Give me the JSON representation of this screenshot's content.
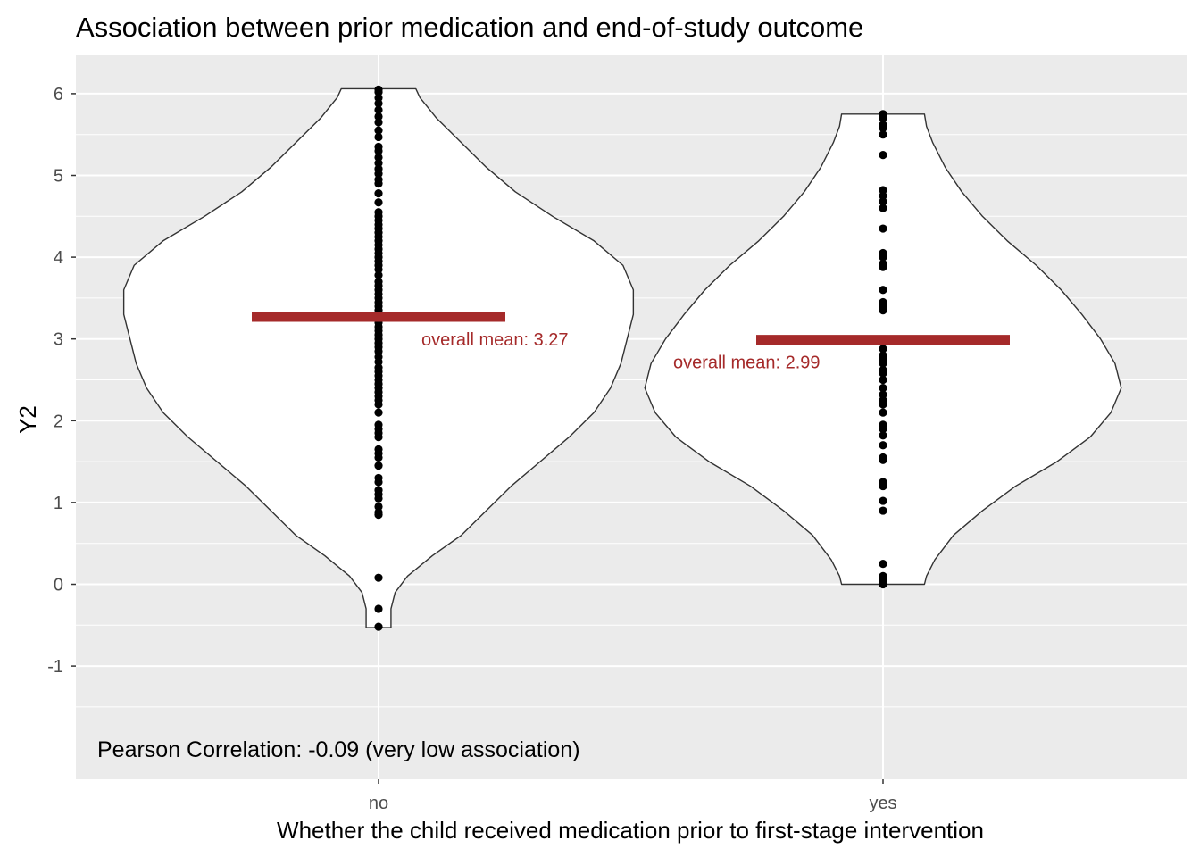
{
  "chart_data": {
    "type": "violin",
    "title": "Association between prior medication and end-of-study outcome",
    "xlabel": "Whether the child received medication prior to first-stage intervention",
    "ylabel": "Y2",
    "categories": [
      "no",
      "yes"
    ],
    "ylim": [
      -2,
      6.47
    ],
    "yticks": [
      -1,
      0,
      1,
      2,
      3,
      4,
      5,
      6
    ],
    "grid": true,
    "background": "#ebebeb",
    "mean_color": "#a52a2a",
    "groups": [
      {
        "category": "no",
        "mean": 3.27,
        "mean_label": "overall mean: 3.27",
        "points": [
          6.05,
          6.02,
          5.95,
          5.88,
          5.8,
          5.72,
          5.65,
          5.55,
          5.47,
          5.35,
          5.3,
          5.22,
          5.15,
          5.08,
          5.02,
          4.95,
          4.9,
          4.78,
          4.67,
          4.55,
          4.5,
          4.45,
          4.4,
          4.35,
          4.3,
          4.25,
          4.2,
          4.15,
          4.1,
          4.05,
          4.0,
          3.95,
          3.9,
          3.85,
          3.78,
          3.7,
          3.65,
          3.6,
          3.55,
          3.5,
          3.45,
          3.4,
          3.35,
          3.3,
          3.25,
          3.2,
          3.15,
          3.1,
          3.05,
          3.0,
          2.95,
          2.9,
          2.85,
          2.78,
          2.72,
          2.65,
          2.6,
          2.55,
          2.5,
          2.45,
          2.4,
          2.35,
          2.3,
          2.25,
          2.2,
          2.1,
          1.95,
          1.9,
          1.85,
          1.8,
          1.65,
          1.6,
          1.55,
          1.45,
          1.3,
          1.25,
          1.15,
          1.1,
          1.05,
          0.95,
          0.88,
          0.85,
          0.08,
          -0.3,
          -0.52
        ],
        "density": [
          [
            -0.53,
            0.06
          ],
          [
            -0.48,
            0.06
          ],
          [
            -0.3,
            0.06
          ],
          [
            -0.1,
            0.08
          ],
          [
            0.1,
            0.14
          ],
          [
            0.35,
            0.26
          ],
          [
            0.6,
            0.4
          ],
          [
            0.9,
            0.52
          ],
          [
            1.2,
            0.64
          ],
          [
            1.5,
            0.78
          ],
          [
            1.8,
            0.92
          ],
          [
            2.1,
            1.04
          ],
          [
            2.4,
            1.12
          ],
          [
            2.7,
            1.17
          ],
          [
            3.0,
            1.2
          ],
          [
            3.3,
            1.23
          ],
          [
            3.6,
            1.23
          ],
          [
            3.9,
            1.18
          ],
          [
            4.2,
            1.04
          ],
          [
            4.5,
            0.84
          ],
          [
            4.8,
            0.66
          ],
          [
            5.1,
            0.52
          ],
          [
            5.4,
            0.4
          ],
          [
            5.7,
            0.28
          ],
          [
            5.95,
            0.2
          ],
          [
            6.06,
            0.18
          ]
        ]
      },
      {
        "category": "yes",
        "mean": 2.99,
        "mean_label": "overall mean: 2.99",
        "points": [
          5.75,
          5.7,
          5.62,
          5.58,
          5.5,
          5.25,
          4.82,
          4.75,
          4.68,
          4.6,
          4.35,
          4.05,
          4.0,
          3.92,
          3.88,
          3.6,
          3.45,
          3.4,
          3.35,
          2.88,
          2.8,
          2.75,
          2.7,
          2.62,
          2.58,
          2.5,
          2.4,
          2.32,
          2.25,
          2.2,
          2.1,
          1.95,
          1.9,
          1.82,
          1.7,
          1.55,
          1.52,
          1.25,
          1.2,
          1.02,
          0.9,
          0.25,
          0.1,
          0.05,
          0.0
        ],
        "density": [
          [
            0.0,
            0.2
          ],
          [
            0.1,
            0.21
          ],
          [
            0.3,
            0.25
          ],
          [
            0.6,
            0.34
          ],
          [
            0.9,
            0.48
          ],
          [
            1.2,
            0.64
          ],
          [
            1.5,
            0.84
          ],
          [
            1.8,
            1.0
          ],
          [
            2.1,
            1.1
          ],
          [
            2.4,
            1.15
          ],
          [
            2.7,
            1.12
          ],
          [
            3.0,
            1.05
          ],
          [
            3.3,
            0.96
          ],
          [
            3.6,
            0.86
          ],
          [
            3.9,
            0.74
          ],
          [
            4.2,
            0.6
          ],
          [
            4.5,
            0.48
          ],
          [
            4.8,
            0.38
          ],
          [
            5.1,
            0.3
          ],
          [
            5.4,
            0.24
          ],
          [
            5.6,
            0.21
          ],
          [
            5.75,
            0.2
          ]
        ]
      }
    ],
    "annotation": "Pearson Correlation: -0.09 (very low association)"
  }
}
